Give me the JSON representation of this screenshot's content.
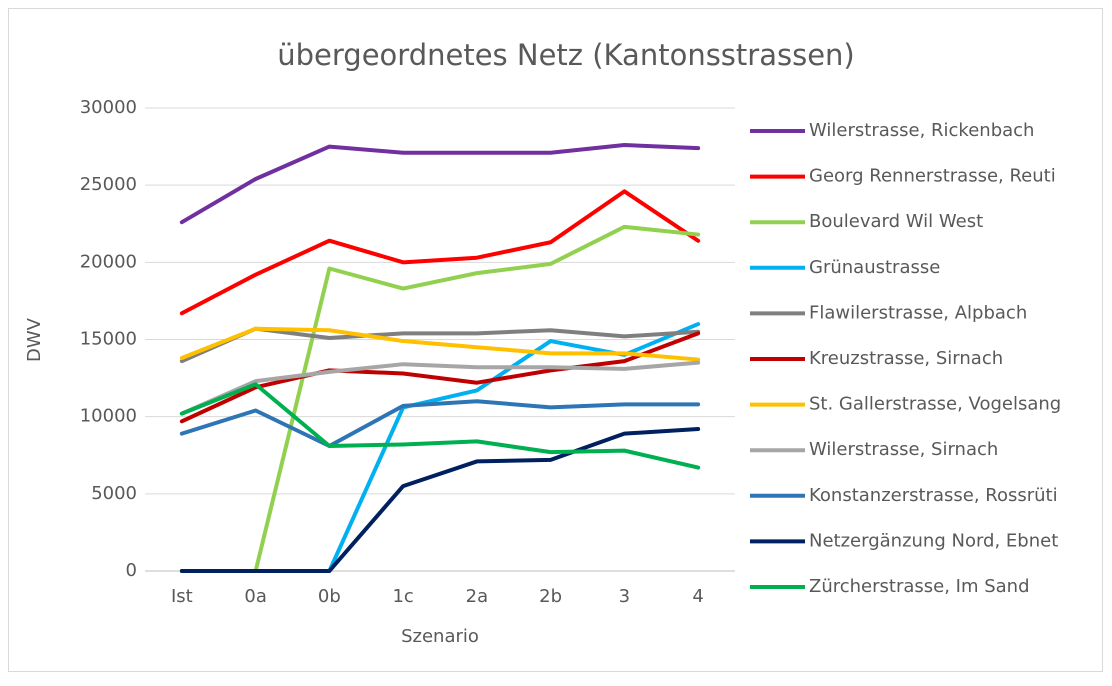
{
  "chart_data": {
    "type": "line",
    "title": "übergeordnetes Netz (Kantonsstrassen)",
    "x_label": "Szenario",
    "y_label": "DWV",
    "categories": [
      "Ist",
      "0a",
      "0b",
      "1c",
      "2a",
      "2b",
      "3",
      "4"
    ],
    "ylim": [
      0,
      30000
    ],
    "yticks": [
      0,
      5000,
      10000,
      15000,
      20000,
      25000,
      30000
    ],
    "grid": true,
    "legend": "right",
    "series": [
      {
        "name": "Wilerstrasse, Rickenbach",
        "color": "#7030a0",
        "values": [
          22600,
          25400,
          27500,
          27100,
          27100,
          27100,
          27600,
          27400
        ]
      },
      {
        "name": "Georg Rennerstrasse, Reuti",
        "color": "#ff0000",
        "values": [
          16700,
          19200,
          21400,
          20000,
          20300,
          21300,
          24600,
          21400
        ]
      },
      {
        "name": "Boulevard Wil West",
        "color": "#92d050",
        "values": [
          0,
          0,
          19600,
          18300,
          19300,
          19900,
          22300,
          21800
        ]
      },
      {
        "name": "Grünaustrasse",
        "color": "#00b0f0",
        "values": [
          0,
          0,
          0,
          10600,
          11700,
          14900,
          14000,
          16000
        ]
      },
      {
        "name": "Flawilerstrasse, Alpbach",
        "color": "#7f7f7f",
        "values": [
          13600,
          15700,
          15100,
          15400,
          15400,
          15600,
          15200,
          15500
        ]
      },
      {
        "name": "Kreuzstrasse, Sirnach",
        "color": "#c00000",
        "values": [
          9700,
          11900,
          13000,
          12800,
          12200,
          13000,
          13600,
          15400
        ]
      },
      {
        "name": "St. Gallerstrasse, Vogelsang",
        "color": "#ffc000",
        "values": [
          13800,
          15700,
          15600,
          14900,
          14500,
          14100,
          14100,
          13700
        ]
      },
      {
        "name": "Wilerstrasse, Sirnach",
        "color": "#a6a6a6",
        "values": [
          10200,
          12300,
          12900,
          13400,
          13200,
          13200,
          13100,
          13500
        ]
      },
      {
        "name": "Konstanzerstrasse, Rossrüti",
        "color": "#2e75b6",
        "values": [
          8900,
          10400,
          8100,
          10700,
          11000,
          10600,
          10800,
          10800
        ]
      },
      {
        "name": "Netzergänzung Nord, Ebnet",
        "color": "#002060",
        "values": [
          0,
          0,
          0,
          5500,
          7100,
          7200,
          8900,
          9200
        ]
      },
      {
        "name": "Zürcherstrasse, Im Sand",
        "color": "#00b050",
        "values": [
          10200,
          12100,
          8100,
          8200,
          8400,
          7700,
          7800,
          6700
        ]
      }
    ]
  }
}
